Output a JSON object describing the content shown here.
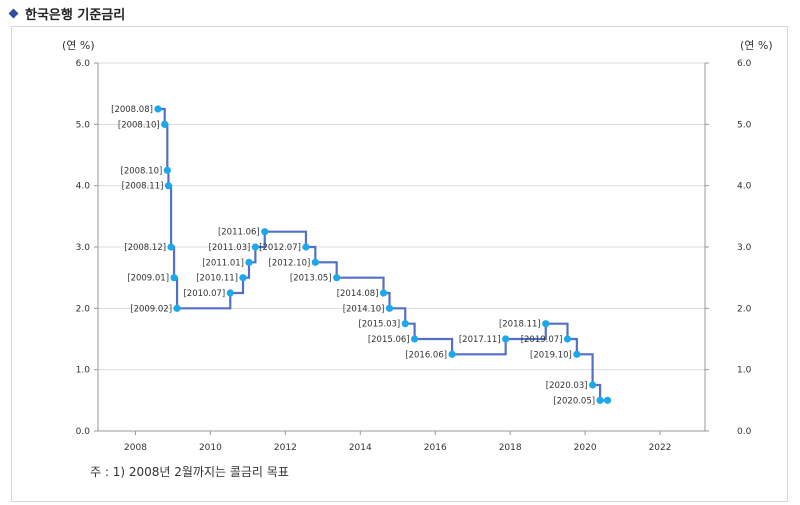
{
  "header": {
    "title": "한국은행 기준금리"
  },
  "note": "주 : 1) 2008년 2월까지는 콜금리 목표",
  "chart_data": {
    "type": "line",
    "title": "한국은행 기준금리",
    "ylabel_left": "(연 %)",
    "ylabel_right": "(연 %)",
    "xlim": [
      2007,
      2023.2
    ],
    "ylim": [
      0,
      6
    ],
    "xticks": [
      "2008",
      "2010",
      "2012",
      "2014",
      "2016",
      "2018",
      "2020",
      "2022"
    ],
    "yticks_left": [
      "0.0",
      "1.0",
      "2.0",
      "3.0",
      "4.0",
      "5.0",
      "6.0"
    ],
    "yticks_right": [
      "0.0",
      "1.0",
      "2.0",
      "3.0",
      "4.0",
      "5.0",
      "6.0"
    ],
    "grid": true,
    "line_color": "#5470c6",
    "point_color": "#1ba9ec",
    "series": [
      {
        "values": [
          {
            "x": 2008.6,
            "y": 5.25,
            "label": "[2008.08]"
          },
          {
            "x": 2008.78,
            "y": 5.0,
            "label": "[2008.10]"
          },
          {
            "x": 2008.85,
            "y": 4.25,
            "label": "[2008.10]"
          },
          {
            "x": 2008.88,
            "y": 4.0,
            "label": "[2008.11]"
          },
          {
            "x": 2008.95,
            "y": 3.0,
            "label": "[2008.12]"
          },
          {
            "x": 2009.03,
            "y": 2.5,
            "label": "[2009.01]"
          },
          {
            "x": 2009.11,
            "y": 2.0,
            "label": "[2009.02]"
          },
          {
            "x": 2010.53,
            "y": 2.25,
            "label": "[2010.07]"
          },
          {
            "x": 2010.87,
            "y": 2.5,
            "label": "[2010.11]"
          },
          {
            "x": 2011.03,
            "y": 2.75,
            "label": "[2011.01]"
          },
          {
            "x": 2011.2,
            "y": 3.0,
            "label": "[2011.03]"
          },
          {
            "x": 2011.45,
            "y": 3.25,
            "label": "[2011.06]"
          },
          {
            "x": 2012.55,
            "y": 3.0,
            "label": "[2012.07]"
          },
          {
            "x": 2012.8,
            "y": 2.75,
            "label": "[2012.10]"
          },
          {
            "x": 2013.37,
            "y": 2.5,
            "label": "[2013.05]"
          },
          {
            "x": 2014.62,
            "y": 2.25,
            "label": "[2014.08]"
          },
          {
            "x": 2014.78,
            "y": 2.0,
            "label": "[2014.10]"
          },
          {
            "x": 2015.2,
            "y": 1.75,
            "label": "[2015.03]"
          },
          {
            "x": 2015.45,
            "y": 1.5,
            "label": "[2015.06]"
          },
          {
            "x": 2016.45,
            "y": 1.25,
            "label": "[2016.06]"
          },
          {
            "x": 2017.88,
            "y": 1.5,
            "label": "[2017.11]"
          },
          {
            "x": 2018.95,
            "y": 1.75,
            "label": "[2018.11]"
          },
          {
            "x": 2019.53,
            "y": 1.5,
            "label": "[2019.07]"
          },
          {
            "x": 2019.78,
            "y": 1.25,
            "label": "[2019.10]"
          },
          {
            "x": 2020.2,
            "y": 0.75,
            "label": "[2020.03]"
          },
          {
            "x": 2020.4,
            "y": 0.5,
            "label": "[2020.05]"
          },
          {
            "x": 2020.6,
            "y": 0.5,
            "label": ""
          }
        ]
      }
    ]
  }
}
